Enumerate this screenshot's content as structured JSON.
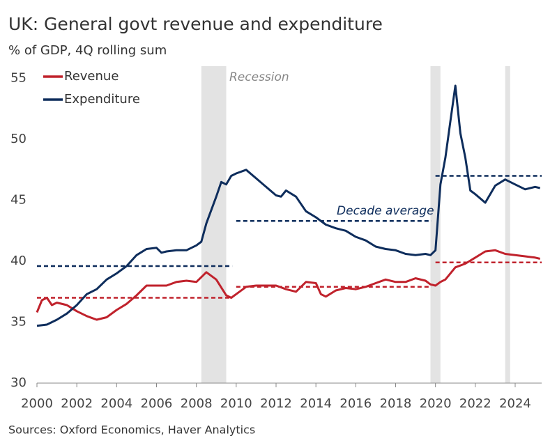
{
  "chart_data": {
    "type": "line",
    "title": "UK: General govt revenue and expenditure",
    "subtitle": "% of GDP, 4Q rolling sum",
    "source": "Sources: Oxford Economics, Haver Analytics",
    "xlim": [
      2000,
      2025.33
    ],
    "ylim": [
      30,
      56
    ],
    "xticks": [
      2000,
      2002,
      2004,
      2006,
      2008,
      2010,
      2012,
      2014,
      2016,
      2018,
      2020,
      2022,
      2024
    ],
    "yticks": [
      30,
      35,
      40,
      45,
      50,
      55
    ],
    "legend": "top-left",
    "series": [
      {
        "name": "Revenue",
        "color": "#c0222c",
        "x": [
          2000,
          2000.25,
          2000.5,
          2000.75,
          2001,
          2001.5,
          2002,
          2002.5,
          2003,
          2003.5,
          2004,
          2004.5,
          2005,
          2005.5,
          2006,
          2006.5,
          2007,
          2007.5,
          2008,
          2008.5,
          2009,
          2009.5,
          2009.75,
          2010,
          2010.5,
          2011,
          2011.5,
          2012,
          2012.5,
          2013,
          2013.5,
          2014,
          2014.25,
          2014.5,
          2015,
          2015.5,
          2016,
          2016.5,
          2017,
          2017.5,
          2018,
          2018.5,
          2019,
          2019.5,
          2019.75,
          2020,
          2020.25,
          2020.5,
          2021,
          2021.5,
          2022,
          2022.5,
          2023,
          2023.5,
          2024,
          2024.5,
          2025,
          2025.25
        ],
        "values": [
          35.8,
          36.8,
          37.0,
          36.4,
          36.6,
          36.4,
          35.9,
          35.5,
          35.2,
          35.4,
          36.0,
          36.5,
          37.2,
          38.0,
          38.0,
          38.0,
          38.3,
          38.4,
          38.3,
          39.1,
          38.5,
          37.2,
          37.0,
          37.3,
          37.9,
          38.0,
          38.0,
          38.0,
          37.7,
          37.5,
          38.3,
          38.2,
          37.3,
          37.1,
          37.6,
          37.8,
          37.7,
          37.9,
          38.2,
          38.5,
          38.3,
          38.3,
          38.6,
          38.4,
          38.1,
          38.0,
          38.3,
          38.5,
          39.5,
          39.8,
          40.3,
          40.8,
          40.9,
          40.6,
          40.5,
          40.4,
          40.3,
          40.2
        ]
      },
      {
        "name": "Expenditure",
        "color": "#0e2d5c",
        "x": [
          2000,
          2000.5,
          2001,
          2001.5,
          2002,
          2002.5,
          2003,
          2003.5,
          2004,
          2004.5,
          2005,
          2005.5,
          2006,
          2006.25,
          2006.5,
          2007,
          2007.5,
          2008,
          2008.25,
          2008.5,
          2009,
          2009.25,
          2009.5,
          2009.75,
          2010,
          2010.5,
          2011,
          2011.5,
          2012,
          2012.25,
          2012.5,
          2013,
          2013.5,
          2014,
          2014.5,
          2015,
          2015.5,
          2016,
          2016.5,
          2017,
          2017.5,
          2018,
          2018.5,
          2019,
          2019.5,
          2019.75,
          2020,
          2020.25,
          2020.5,
          2020.75,
          2021,
          2021.25,
          2021.5,
          2021.75,
          2022,
          2022.5,
          2023,
          2023.5,
          2024,
          2024.5,
          2025,
          2025.25
        ],
        "values": [
          34.7,
          34.8,
          35.2,
          35.7,
          36.4,
          37.3,
          37.7,
          38.5,
          39.0,
          39.6,
          40.5,
          41.0,
          41.1,
          40.7,
          40.8,
          40.9,
          40.9,
          41.3,
          41.6,
          43.1,
          45.3,
          46.5,
          46.3,
          47.0,
          47.2,
          47.5,
          46.8,
          46.1,
          45.4,
          45.3,
          45.8,
          45.3,
          44.1,
          43.6,
          43.0,
          42.7,
          42.5,
          42.0,
          41.7,
          41.2,
          41.0,
          40.9,
          40.6,
          40.5,
          40.6,
          40.5,
          40.9,
          46.3,
          48.5,
          51.5,
          54.4,
          50.5,
          48.5,
          45.8,
          45.5,
          44.8,
          46.2,
          46.7,
          46.3,
          45.9,
          46.1,
          46.0
        ]
      }
    ],
    "averages": [
      {
        "series": 0,
        "start": 2000,
        "end": 2009.8,
        "value": 37.0
      },
      {
        "series": 0,
        "start": 2010,
        "end": 2019.8,
        "value": 37.9
      },
      {
        "series": 0,
        "start": 2020,
        "end": 2025.33,
        "value": 39.9
      },
      {
        "series": 1,
        "start": 2000,
        "end": 2009.8,
        "value": 39.6
      },
      {
        "series": 1,
        "start": 2010,
        "end": 2019.8,
        "value": 43.3
      },
      {
        "series": 1,
        "start": 2020,
        "end": 2025.33,
        "value": 47.0
      }
    ],
    "recessions": [
      {
        "start": 2008.25,
        "end": 2009.5
      },
      {
        "start": 2019.75,
        "end": 2020.25
      },
      {
        "start": 2023.5,
        "end": 2023.75
      }
    ],
    "annotations": [
      {
        "text": "Recession"
      },
      {
        "text": "Decade average"
      }
    ]
  }
}
